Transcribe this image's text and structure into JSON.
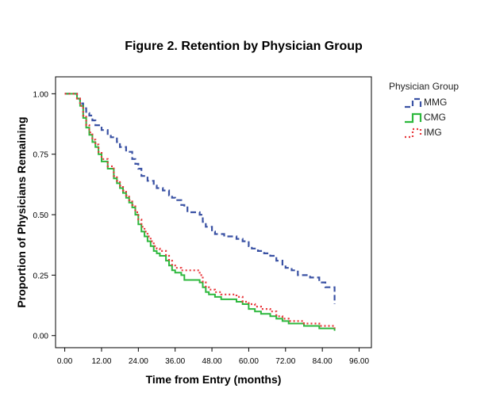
{
  "chart_data": {
    "type": "line",
    "title": "Figure 2. Retention by Physician Group",
    "xlabel": "Time from Entry (months)",
    "ylabel": "Proportion of Physicians Remaining",
    "xlim": [
      -3,
      100
    ],
    "ylim": [
      -0.05,
      1.07
    ],
    "x_ticks": [
      0,
      12,
      24,
      36,
      48,
      60,
      72,
      84,
      96
    ],
    "x_tick_labels": [
      "0.00",
      "12.00",
      "24.00",
      "36.00",
      "48.00",
      "60.00",
      "72.00",
      "84.00",
      "96.00"
    ],
    "y_ticks": [
      0,
      0.25,
      0.5,
      0.75,
      1.0
    ],
    "y_tick_labels": [
      "0.00",
      "0.25",
      "0.50",
      "0.75",
      "1.00"
    ],
    "step": true,
    "grid": false,
    "legend": {
      "title": "Physician Group",
      "position": "right"
    },
    "series": [
      {
        "name": "MMG",
        "color": "#3a52a4",
        "dash": "dashed",
        "points": [
          [
            0,
            1.0
          ],
          [
            2,
            1.0
          ],
          [
            4,
            0.98
          ],
          [
            5,
            0.96
          ],
          [
            6,
            0.94
          ],
          [
            7,
            0.92
          ],
          [
            8,
            0.91
          ],
          [
            9,
            0.89
          ],
          [
            10,
            0.87
          ],
          [
            12,
            0.85
          ],
          [
            14,
            0.83
          ],
          [
            15,
            0.82
          ],
          [
            17,
            0.8
          ],
          [
            18,
            0.78
          ],
          [
            20,
            0.76
          ],
          [
            22,
            0.73
          ],
          [
            23,
            0.71
          ],
          [
            24,
            0.69
          ],
          [
            25,
            0.66
          ],
          [
            27,
            0.64
          ],
          [
            29,
            0.62
          ],
          [
            30,
            0.61
          ],
          [
            32,
            0.6
          ],
          [
            34,
            0.58
          ],
          [
            35,
            0.57
          ],
          [
            36,
            0.56
          ],
          [
            38,
            0.54
          ],
          [
            39,
            0.53
          ],
          [
            40,
            0.51
          ],
          [
            44,
            0.5
          ],
          [
            45,
            0.47
          ],
          [
            46,
            0.45
          ],
          [
            48,
            0.43
          ],
          [
            49,
            0.42
          ],
          [
            52,
            0.41
          ],
          [
            56,
            0.4
          ],
          [
            58,
            0.39
          ],
          [
            60,
            0.37
          ],
          [
            61,
            0.36
          ],
          [
            63,
            0.35
          ],
          [
            65,
            0.34
          ],
          [
            67,
            0.33
          ],
          [
            69,
            0.31
          ],
          [
            71,
            0.29
          ],
          [
            72,
            0.28
          ],
          [
            74,
            0.27
          ],
          [
            76,
            0.25
          ],
          [
            80,
            0.24
          ],
          [
            83,
            0.22
          ],
          [
            85,
            0.2
          ],
          [
            88,
            0.19
          ],
          [
            88,
            0.13
          ]
        ]
      },
      {
        "name": "CMG",
        "color": "#2db83d",
        "dash": "solid",
        "points": [
          [
            0,
            1.0
          ],
          [
            4,
            0.98
          ],
          [
            5,
            0.95
          ],
          [
            6,
            0.9
          ],
          [
            7,
            0.86
          ],
          [
            8,
            0.83
          ],
          [
            9,
            0.8
          ],
          [
            10,
            0.78
          ],
          [
            11,
            0.75
          ],
          [
            12,
            0.72
          ],
          [
            14,
            0.69
          ],
          [
            16,
            0.65
          ],
          [
            17,
            0.63
          ],
          [
            18,
            0.61
          ],
          [
            19,
            0.59
          ],
          [
            20,
            0.57
          ],
          [
            21,
            0.55
          ],
          [
            22,
            0.53
          ],
          [
            23,
            0.5
          ],
          [
            24,
            0.46
          ],
          [
            25,
            0.43
          ],
          [
            26,
            0.41
          ],
          [
            27,
            0.39
          ],
          [
            28,
            0.37
          ],
          [
            29,
            0.35
          ],
          [
            30,
            0.34
          ],
          [
            31,
            0.33
          ],
          [
            33,
            0.31
          ],
          [
            34,
            0.29
          ],
          [
            35,
            0.27
          ],
          [
            36,
            0.26
          ],
          [
            38,
            0.25
          ],
          [
            39,
            0.23
          ],
          [
            44,
            0.22
          ],
          [
            45,
            0.2
          ],
          [
            46,
            0.18
          ],
          [
            47,
            0.17
          ],
          [
            49,
            0.16
          ],
          [
            51,
            0.15
          ],
          [
            56,
            0.14
          ],
          [
            58,
            0.13
          ],
          [
            60,
            0.11
          ],
          [
            62,
            0.1
          ],
          [
            64,
            0.09
          ],
          [
            67,
            0.08
          ],
          [
            69,
            0.07
          ],
          [
            71,
            0.06
          ],
          [
            73,
            0.05
          ],
          [
            78,
            0.04
          ],
          [
            83,
            0.03
          ],
          [
            88,
            0.03
          ],
          [
            88,
            0.02
          ]
        ]
      },
      {
        "name": "IMG",
        "color": "#e8373b",
        "dash": "dotted",
        "points": [
          [
            0,
            1.0
          ],
          [
            4,
            0.98
          ],
          [
            5,
            0.95
          ],
          [
            6,
            0.91
          ],
          [
            7,
            0.87
          ],
          [
            8,
            0.84
          ],
          [
            9,
            0.81
          ],
          [
            10,
            0.79
          ],
          [
            11,
            0.76
          ],
          [
            12,
            0.73
          ],
          [
            14,
            0.7
          ],
          [
            16,
            0.66
          ],
          [
            17,
            0.64
          ],
          [
            18,
            0.62
          ],
          [
            19,
            0.6
          ],
          [
            20,
            0.58
          ],
          [
            21,
            0.56
          ],
          [
            22,
            0.54
          ],
          [
            23,
            0.51
          ],
          [
            24,
            0.48
          ],
          [
            25,
            0.45
          ],
          [
            26,
            0.43
          ],
          [
            27,
            0.41
          ],
          [
            28,
            0.39
          ],
          [
            29,
            0.37
          ],
          [
            30,
            0.36
          ],
          [
            31,
            0.35
          ],
          [
            33,
            0.33
          ],
          [
            34,
            0.31
          ],
          [
            35,
            0.29
          ],
          [
            36,
            0.28
          ],
          [
            38,
            0.27
          ],
          [
            44,
            0.25
          ],
          [
            45,
            0.22
          ],
          [
            46,
            0.2
          ],
          [
            47,
            0.19
          ],
          [
            49,
            0.18
          ],
          [
            51,
            0.17
          ],
          [
            56,
            0.16
          ],
          [
            58,
            0.14
          ],
          [
            60,
            0.13
          ],
          [
            62,
            0.12
          ],
          [
            64,
            0.11
          ],
          [
            67,
            0.1
          ],
          [
            69,
            0.08
          ],
          [
            71,
            0.07
          ],
          [
            73,
            0.06
          ],
          [
            78,
            0.05
          ],
          [
            83,
            0.04
          ],
          [
            88,
            0.04
          ],
          [
            88,
            0.03
          ]
        ]
      }
    ]
  }
}
